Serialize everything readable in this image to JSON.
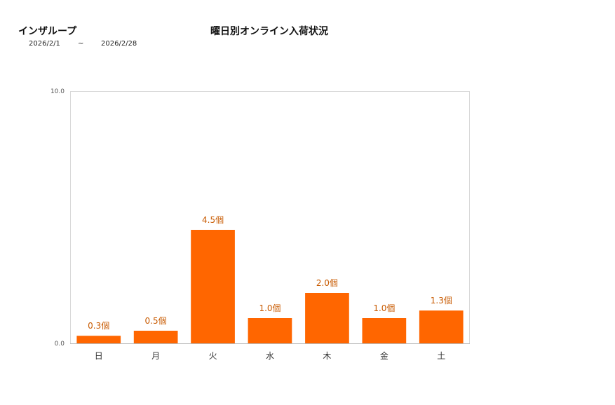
{
  "header": {
    "shop_name": "インザループ",
    "date_from": "2026/2/1",
    "date_sep": "~",
    "date_to": "2026/2/28"
  },
  "chart_data": {
    "type": "bar",
    "title": "曜日別オンライン入荷状況",
    "categories": [
      "日",
      "月",
      "火",
      "水",
      "木",
      "金",
      "土"
    ],
    "values": [
      0.3,
      0.5,
      4.5,
      1.0,
      2.0,
      1.0,
      1.3
    ],
    "data_labels": [
      "0.3個",
      "0.5個",
      "4.5個",
      "1.0個",
      "2.0個",
      "1.0個",
      "1.3個"
    ],
    "y_ticks": [
      "0.0",
      "10.0"
    ],
    "ylim": [
      0,
      10
    ],
    "bar_color": "#ff6600",
    "label_color": "#c85a00",
    "grid": false,
    "legend": "none"
  }
}
